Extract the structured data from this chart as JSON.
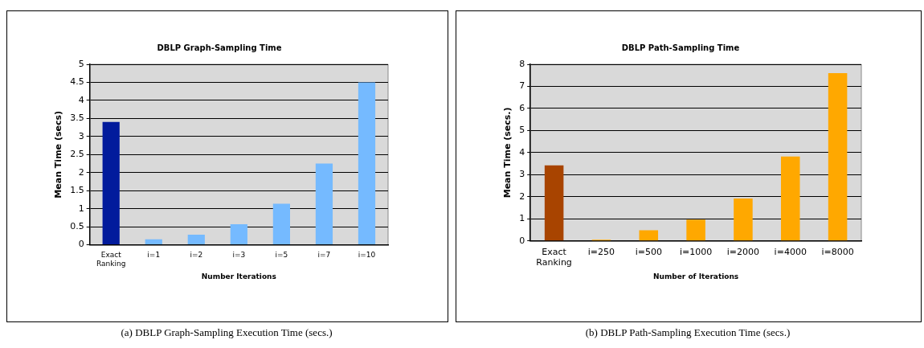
{
  "chart_data": [
    {
      "type": "bar",
      "title": "DBLP Graph-Sampling Time",
      "xlabel": "Number Iterations",
      "ylabel": "Mean Time (secs)",
      "categories": [
        "Exact Ranking",
        "i=1",
        "i=2",
        "i=3",
        "i=5",
        "i=7",
        "i=10"
      ],
      "values": [
        3.4,
        0.15,
        0.28,
        0.57,
        1.14,
        2.25,
        4.5
      ],
      "colors": [
        "#021b9c",
        "#75baff",
        "#75baff",
        "#75baff",
        "#75baff",
        "#75baff",
        "#75baff"
      ],
      "ylim": [
        0,
        5
      ],
      "yticks": [
        0,
        0.5,
        1,
        1.5,
        2,
        2.5,
        3,
        3.5,
        4,
        4.5,
        5
      ],
      "grid": "y",
      "annotations": [
        "(a)  DBLP Graph-Sampling Execution Time (secs.)"
      ]
    },
    {
      "type": "bar",
      "title": "DBLP Path-Sampling Time",
      "xlabel": "Number of Iterations",
      "ylabel": "Mean Time (secs.)",
      "categories": [
        "Exact Ranking",
        "i=250",
        "i=500",
        "i=1000",
        "i=2000",
        "i=4000",
        "i=8000"
      ],
      "values": [
        3.42,
        0.06,
        0.48,
        0.97,
        1.92,
        3.82,
        7.6
      ],
      "colors": [
        "#a84400",
        "#ffa800",
        "#ffa800",
        "#ffa800",
        "#ffa800",
        "#ffa800",
        "#ffa800"
      ],
      "ylim": [
        0,
        8
      ],
      "yticks": [
        0,
        1,
        2,
        3,
        4,
        5,
        6,
        7,
        8
      ],
      "grid": "y",
      "annotations": [
        "(b)  DBLP Path-Sampling Execution Time (secs.)"
      ]
    }
  ]
}
